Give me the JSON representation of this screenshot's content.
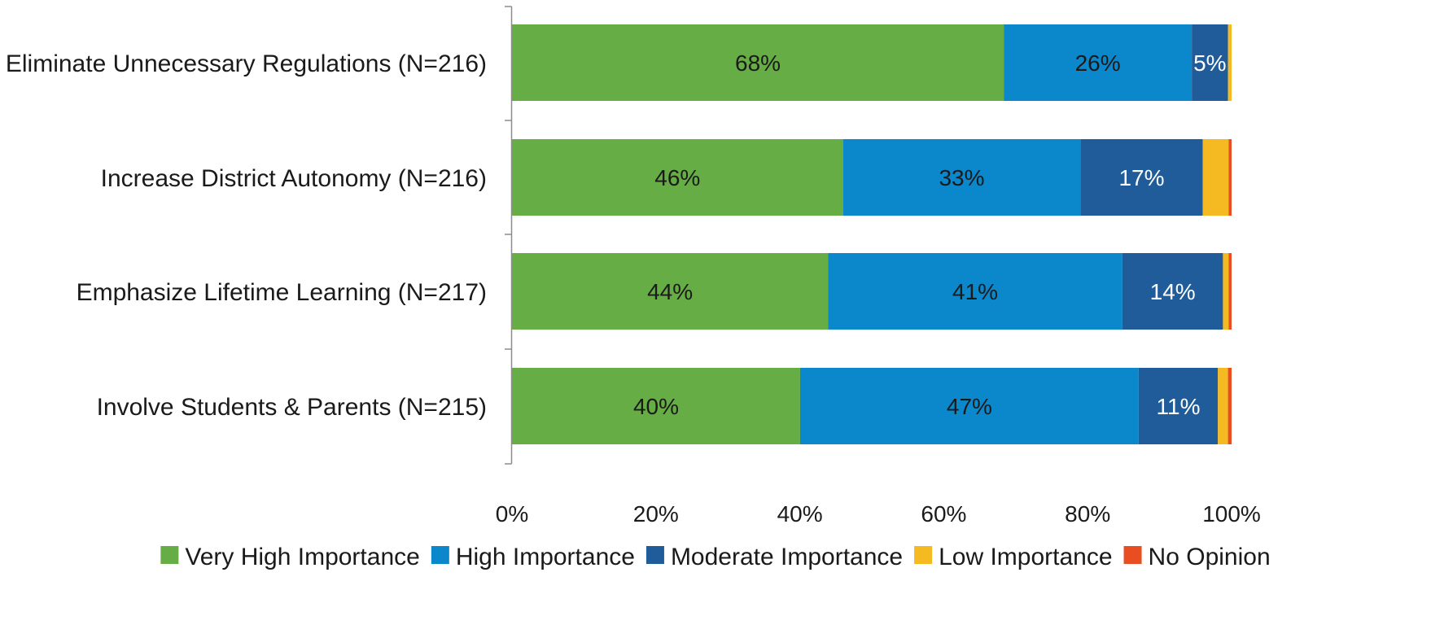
{
  "chart_data": {
    "type": "bar",
    "orientation": "horizontal",
    "stacked": "percent",
    "categories": [
      "Eliminate Unnecessary Regulations (N=216)",
      "Increase District Autonomy (N=216)",
      "Emphasize Lifetime Learning (N=217)",
      "Involve Students & Parents (N=215)"
    ],
    "series": [
      {
        "name": "Very High Importance",
        "color": "#66ad45",
        "values": [
          68,
          46,
          44,
          40
        ],
        "labels": [
          "68%",
          "46%",
          "44%",
          "40%"
        ],
        "label_color": "#1a1a1a"
      },
      {
        "name": "High Importance",
        "color": "#0b87cb",
        "values": [
          26,
          33,
          41,
          47
        ],
        "labels": [
          "26%",
          "33%",
          "41%",
          "47%"
        ],
        "label_color": "#1a1a1a"
      },
      {
        "name": "Moderate Importance",
        "color": "#1f5c99",
        "values": [
          5,
          17,
          14,
          11
        ],
        "labels": [
          "5%",
          "17%",
          "14%",
          "11%"
        ],
        "label_color": "#ffffff"
      },
      {
        "name": "Low Importance",
        "color": "#f5b921",
        "values": [
          0.5,
          3.6,
          0.8,
          1.4
        ],
        "labels": [
          "",
          "",
          "",
          ""
        ],
        "label_color": "#1a1a1a"
      },
      {
        "name": "No Opinion",
        "color": "#e84e22",
        "values": [
          0,
          0.4,
          0.4,
          0.5
        ],
        "labels": [
          "",
          "",
          "",
          ""
        ],
        "label_color": "#ffffff"
      }
    ],
    "x_ticks": [
      "0%",
      "20%",
      "40%",
      "60%",
      "80%",
      "100%"
    ],
    "xlim": [
      0,
      100
    ],
    "grid": false,
    "legend_position": "bottom"
  }
}
